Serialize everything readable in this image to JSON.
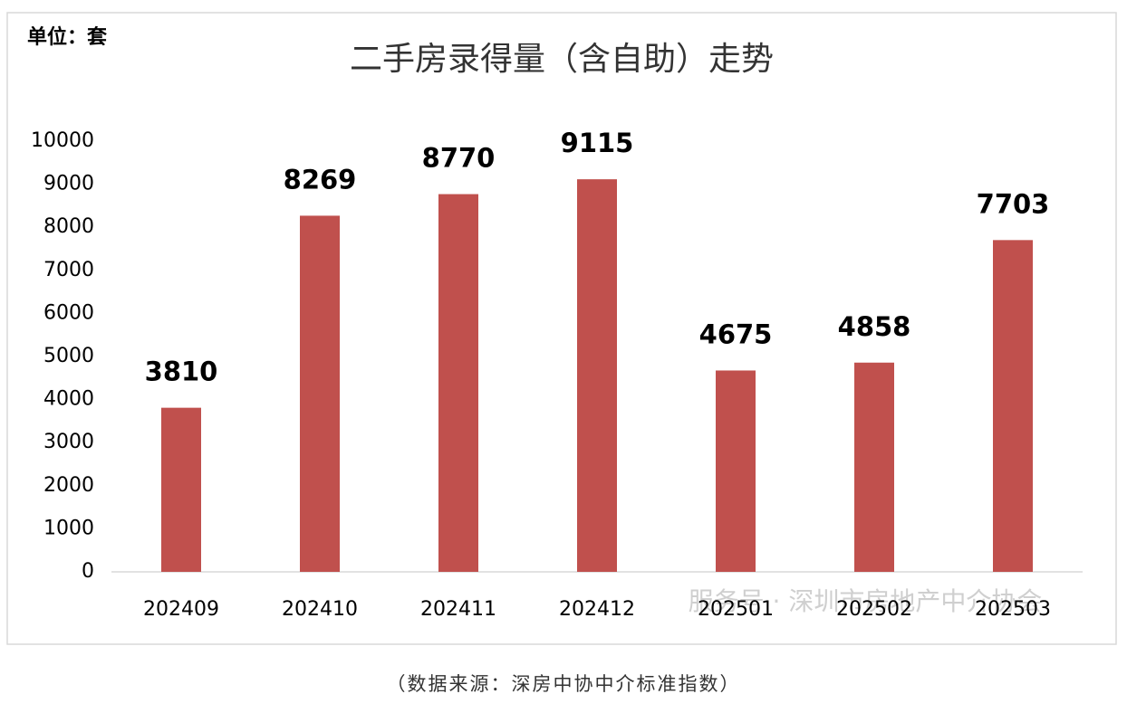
{
  "chart_data": {
    "type": "bar",
    "title": "二手房录得量（含自助）走势",
    "unit_label": "单位：套",
    "categories": [
      "202409",
      "202410",
      "202411",
      "202412",
      "202501",
      "202502",
      "202503"
    ],
    "values": [
      3810,
      8269,
      8770,
      9115,
      4675,
      4858,
      7703
    ],
    "color": "#c0504d",
    "ylim": [
      0,
      10000
    ],
    "yticks": [
      0,
      1000,
      2000,
      3000,
      4000,
      5000,
      6000,
      7000,
      8000,
      9000,
      10000
    ],
    "grid": false
  },
  "watermark": "服务号 · 深圳市房地产中介协会",
  "source": "（数据来源：深房中协中介标准指数）"
}
